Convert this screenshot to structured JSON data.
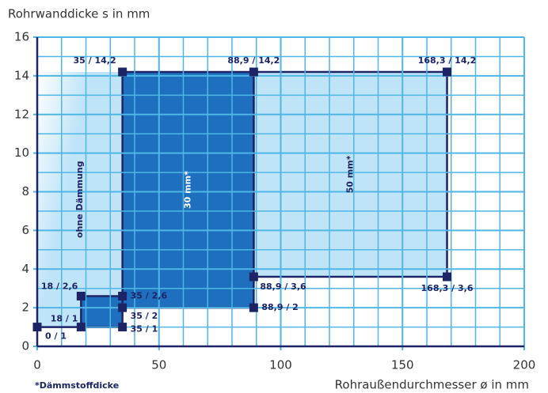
{
  "chart_data": {
    "type": "region",
    "y_axis_label": "Rohrwanddicke s in mm",
    "x_axis_label": "Rohraußendurchmesser ø in mm",
    "footnote": "*Dämmstoffdicke",
    "xlim": [
      0,
      200
    ],
    "xticks": [
      0,
      50,
      100,
      150,
      200
    ],
    "xgrid": [
      10,
      20,
      30,
      40,
      60,
      70,
      80,
      90,
      110,
      120,
      130,
      140,
      160,
      170,
      180,
      190
    ],
    "ylim": [
      0,
      16
    ],
    "yticks": [
      0,
      2,
      4,
      6,
      8,
      10,
      12,
      14,
      16
    ],
    "ygrid": [
      1,
      3,
      5,
      7,
      9,
      11,
      13,
      15
    ],
    "grid": true,
    "points": [
      {
        "x": 0,
        "y": 1,
        "label": "0 / 1"
      },
      {
        "x": 18,
        "y": 1,
        "label": "18 / 1"
      },
      {
        "x": 18,
        "y": 2.6,
        "label": "18 / 2,6"
      },
      {
        "x": 35,
        "y": 2.6,
        "label": "35 / 2,6"
      },
      {
        "x": 35,
        "y": 2,
        "label": "35 / 2"
      },
      {
        "x": 35,
        "y": 1,
        "label": "35 / 1"
      },
      {
        "x": 35,
        "y": 14.2,
        "label": "35 / 14,2"
      },
      {
        "x": 88.9,
        "y": 14.2,
        "label": "88,9 / 14,2"
      },
      {
        "x": 88.9,
        "y": 3.6,
        "label": "88,9 / 3,6"
      },
      {
        "x": 88.9,
        "y": 2,
        "label": "88,9 / 2"
      },
      {
        "x": 168.3,
        "y": 14.2,
        "label": "168,3 / 14,2"
      },
      {
        "x": 168.3,
        "y": 3.6,
        "label": "168,3 / 3,6"
      }
    ],
    "regions": [
      {
        "label": "ohne Dämmung",
        "color": "#bfe4f8",
        "corners": [
          [
            0,
            0
          ],
          [
            5,
            5
          ],
          [
            6,
            6
          ],
          [
            0,
            6
          ]
        ]
      },
      {
        "label": "50 mm*",
        "color": "#bfe4f8",
        "corners": [
          [
            8,
            8
          ],
          [
            11,
            11
          ],
          [
            10,
            10
          ],
          [
            7,
            7
          ]
        ]
      },
      {
        "label": "30 mm*",
        "color": "#1f6fbf",
        "corners": [
          [
            4,
            4
          ],
          [
            9,
            9
          ],
          [
            7,
            7
          ],
          [
            6,
            6
          ]
        ]
      },
      {
        "color": "#1f6fbf",
        "corners": [
          [
            1,
            1
          ],
          [
            5,
            5
          ],
          [
            3,
            3
          ],
          [
            2,
            2
          ]
        ]
      }
    ],
    "segments": [
      [
        0,
        1
      ]
    ],
    "line_color": "#1d2466",
    "grid_color": "#4fb6e6"
  }
}
